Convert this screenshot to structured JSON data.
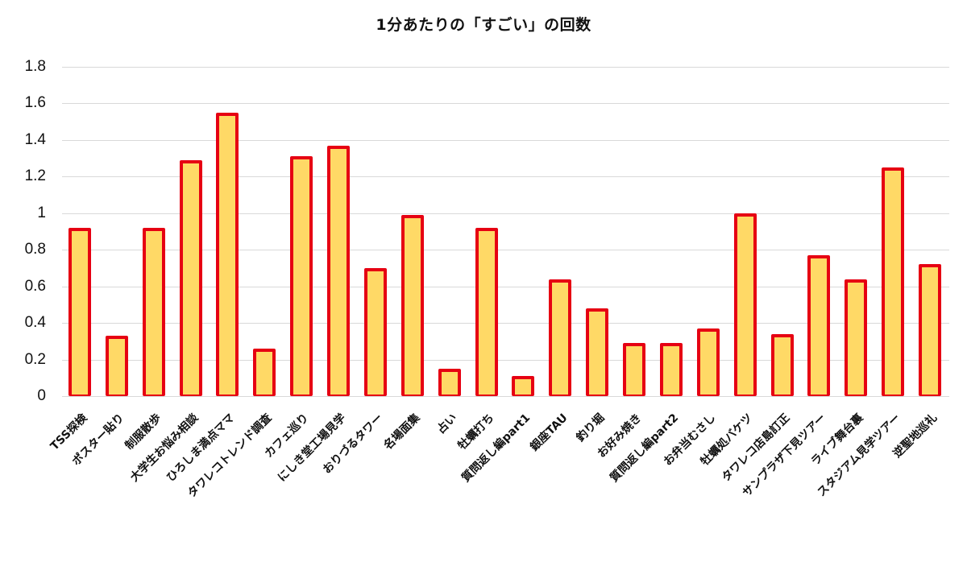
{
  "chart_data": {
    "type": "bar",
    "title": "1分あたりの「すごい」の回数",
    "xlabel": "",
    "ylabel": "",
    "ylim": [
      0,
      1.8
    ],
    "yticks": [
      "0",
      "0.2",
      "0.4",
      "0.6",
      "0.8",
      "1",
      "1.2",
      "1.4",
      "1.6",
      "1.8"
    ],
    "grid": true,
    "legend": null,
    "colors": {
      "fill": "#FFD966",
      "border": "#E60012",
      "grid": "#D9D9D9"
    },
    "categories": [
      "TSS探検",
      "ポスター貼り",
      "制服散歩",
      "大学生お悩み相談",
      "ひろしま満点ママ",
      "タワレコトレンド調査",
      "カフェ巡り",
      "にしき堂工場見学",
      "おりづるタワー",
      "名場面集",
      "占い",
      "牡蠣打ち",
      "質問返し編part1",
      "銀座TAU",
      "釣り堀",
      "お好み焼き",
      "質問返し編part2",
      "お弁当むさし",
      "牡蠣処バケツ",
      "タワレコ店島訂正",
      "サンプラザ下見ツアー",
      "ライブ舞台裏",
      "スタジアム見学ツアー",
      "逆聖地巡礼"
    ],
    "values": [
      0.92,
      0.33,
      0.92,
      1.29,
      1.55,
      0.26,
      1.31,
      1.37,
      0.7,
      0.99,
      0.15,
      0.92,
      0.11,
      0.64,
      0.48,
      0.29,
      0.29,
      0.37,
      1.0,
      0.34,
      0.77,
      0.64,
      1.25,
      0.72
    ]
  }
}
